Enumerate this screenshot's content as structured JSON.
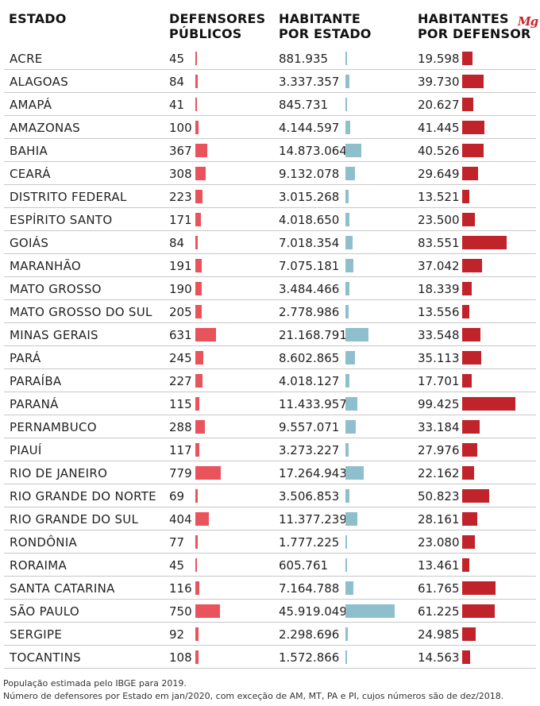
{
  "logo": "Mg",
  "colors": {
    "defensores": "#e9545c",
    "habitantes": "#8fbfcd",
    "por_defensor": "#c1232b"
  },
  "chart_data": {
    "type": "table",
    "columns": [
      {
        "line1": "ESTADO",
        "line2": ""
      },
      {
        "line1": "DEFENSORES",
        "line2": "PÚBLICOS"
      },
      {
        "line1": "HABITANTE",
        "line2": "POR ESTADO"
      },
      {
        "line1": "HABITANTES",
        "line2": "POR DEFENSOR"
      }
    ],
    "rows": [
      {
        "estado": "ACRE",
        "defensores": 45,
        "defensores_label": "45",
        "habitantes": 881935,
        "habitantes_label": "881.935",
        "por_defensor": 19598,
        "por_defensor_label": "19.598"
      },
      {
        "estado": "ALAGOAS",
        "defensores": 84,
        "defensores_label": "84",
        "habitantes": 3337357,
        "habitantes_label": "3.337.357",
        "por_defensor": 39730,
        "por_defensor_label": "39.730"
      },
      {
        "estado": "AMAPÁ",
        "defensores": 41,
        "defensores_label": "41",
        "habitantes": 845731,
        "habitantes_label": "845.731",
        "por_defensor": 20627,
        "por_defensor_label": "20.627"
      },
      {
        "estado": "AMAZONAS",
        "defensores": 100,
        "defensores_label": "100",
        "habitantes": 4144597,
        "habitantes_label": "4.144.597",
        "por_defensor": 41445,
        "por_defensor_label": "41.445"
      },
      {
        "estado": "BAHIA",
        "defensores": 367,
        "defensores_label": "367",
        "habitantes": 14873064,
        "habitantes_label": "14.873.064",
        "por_defensor": 40526,
        "por_defensor_label": "40.526"
      },
      {
        "estado": "CEARÁ",
        "defensores": 308,
        "defensores_label": "308",
        "habitantes": 9132078,
        "habitantes_label": "9.132.078",
        "por_defensor": 29649,
        "por_defensor_label": "29.649"
      },
      {
        "estado": "DISTRITO FEDERAL",
        "defensores": 223,
        "defensores_label": "223",
        "habitantes": 3015268,
        "habitantes_label": "3.015.268",
        "por_defensor": 13521,
        "por_defensor_label": "13.521"
      },
      {
        "estado": "ESPÍRITO SANTO",
        "defensores": 171,
        "defensores_label": "171",
        "habitantes": 4018650,
        "habitantes_label": "4.018.650",
        "por_defensor": 23500,
        "por_defensor_label": "23.500"
      },
      {
        "estado": "GOIÁS",
        "defensores": 84,
        "defensores_label": "84",
        "habitantes": 7018354,
        "habitantes_label": "7.018.354",
        "por_defensor": 83551,
        "por_defensor_label": "83.551"
      },
      {
        "estado": "MARANHÃO",
        "defensores": 191,
        "defensores_label": "191",
        "habitantes": 7075181,
        "habitantes_label": "7.075.181",
        "por_defensor": 37042,
        "por_defensor_label": "37.042"
      },
      {
        "estado": "MATO GROSSO",
        "defensores": 190,
        "defensores_label": "190",
        "habitantes": 3484466,
        "habitantes_label": "3.484.466",
        "por_defensor": 18339,
        "por_defensor_label": "18.339"
      },
      {
        "estado": "MATO GROSSO DO SUL",
        "defensores": 205,
        "defensores_label": "205",
        "habitantes": 2778986,
        "habitantes_label": "2.778.986",
        "por_defensor": 13556,
        "por_defensor_label": "13.556"
      },
      {
        "estado": "MINAS GERAIS",
        "defensores": 631,
        "defensores_label": "631",
        "habitantes": 21168791,
        "habitantes_label": "21.168.791",
        "por_defensor": 33548,
        "por_defensor_label": "33.548"
      },
      {
        "estado": "PARÁ",
        "defensores": 245,
        "defensores_label": "245",
        "habitantes": 8602865,
        "habitantes_label": "8.602.865",
        "por_defensor": 35113,
        "por_defensor_label": "35.113"
      },
      {
        "estado": "PARAÍBA",
        "defensores": 227,
        "defensores_label": "227",
        "habitantes": 4018127,
        "habitantes_label": "4.018.127",
        "por_defensor": 17701,
        "por_defensor_label": "17.701"
      },
      {
        "estado": "PARANÁ",
        "defensores": 115,
        "defensores_label": "115",
        "habitantes": 11433957,
        "habitantes_label": "11.433.957",
        "por_defensor": 99425,
        "por_defensor_label": "99.425"
      },
      {
        "estado": "PERNAMBUCO",
        "defensores": 288,
        "defensores_label": "288",
        "habitantes": 9557071,
        "habitantes_label": "9.557.071",
        "por_defensor": 33184,
        "por_defensor_label": "33.184"
      },
      {
        "estado": "PIAUÍ",
        "defensores": 117,
        "defensores_label": "117",
        "habitantes": 3273227,
        "habitantes_label": "3.273.227",
        "por_defensor": 27976,
        "por_defensor_label": "27.976"
      },
      {
        "estado": "RIO DE JANEIRO",
        "defensores": 779,
        "defensores_label": "779",
        "habitantes": 17264943,
        "habitantes_label": "17.264.943",
        "por_defensor": 22162,
        "por_defensor_label": "22.162"
      },
      {
        "estado": "RIO GRANDE DO NORTE",
        "defensores": 69,
        "defensores_label": "69",
        "habitantes": 3506853,
        "habitantes_label": "3.506.853",
        "por_defensor": 50823,
        "por_defensor_label": "50.823"
      },
      {
        "estado": "RIO GRANDE DO SUL",
        "defensores": 404,
        "defensores_label": "404",
        "habitantes": 11377239,
        "habitantes_label": "11.377.239",
        "por_defensor": 28161,
        "por_defensor_label": "28.161"
      },
      {
        "estado": "RONDÔNIA",
        "defensores": 77,
        "defensores_label": "77",
        "habitantes": 1777225,
        "habitantes_label": "1.777.225",
        "por_defensor": 23080,
        "por_defensor_label": "23.080"
      },
      {
        "estado": "RORAIMA",
        "defensores": 45,
        "defensores_label": "45",
        "habitantes": 605761,
        "habitantes_label": "605.761",
        "por_defensor": 13461,
        "por_defensor_label": "13.461"
      },
      {
        "estado": "SANTA CATARINA",
        "defensores": 116,
        "defensores_label": "116",
        "habitantes": 7164788,
        "habitantes_label": "7.164.788",
        "por_defensor": 61765,
        "por_defensor_label": "61.765"
      },
      {
        "estado": "SÃO PAULO",
        "defensores": 750,
        "defensores_label": "750",
        "habitantes": 45919049,
        "habitantes_label": "45.919.049",
        "por_defensor": 61225,
        "por_defensor_label": "61.225"
      },
      {
        "estado": "SERGIPE",
        "defensores": 92,
        "defensores_label": "92",
        "habitantes": 2298696,
        "habitantes_label": "2.298.696",
        "por_defensor": 24985,
        "por_defensor_label": "24.985"
      },
      {
        "estado": "TOCANTINS",
        "defensores": 108,
        "defensores_label": "108",
        "habitantes": 1572866,
        "habitantes_label": "1.572.866",
        "por_defensor": 14563,
        "por_defensor_label": "14.563"
      }
    ],
    "footnotes": [
      "População estimada pelo IBGE para 2019.",
      "Número de defensores por Estado em jan/2020, com exceção de AM, MT, PA e PI, cujos números são de dez/2018."
    ]
  }
}
